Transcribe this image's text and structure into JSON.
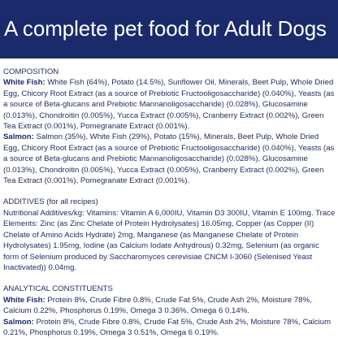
{
  "banner": {
    "title": "A complete pet food for Adult Dogs"
  },
  "composition": {
    "heading": "COMPOSITION",
    "white_fish_label": "White Fish:",
    "white_fish_text": "White Fish (64%), Potato (14.5%), Sunflower Oil, Minerals, Beet Pulp, Whole Dried Egg, Chicory Root Extract (as a source of Prebiotic Fructooligosaccharide) (0.040%), Yeasts (as a source of Beta-glucans and Prebiotic Mannanoligosaccharide) (0.028%), Glucosamine (0.013%), Chondroitin (0.005%), Yucca Extract (0.005%), Cranberry Extract (0.002%), Green Tea Extract (0.001%), Pomegranate Extract (0.001%).",
    "salmon_label": "Salmon:",
    "salmon_text": "Salmon (35%), White Fish (29%), Potato (15%), Minerals, Beet Pulp, Whole Dried Egg, Chicory Root Extract (as a source of Prebiotic Fructooligosaccharide) (0.040%), Yeasts (as a source of Beta-glucans and Prebiotic Mannanoligosaccharide) (0.028%), Glucosamine (0.013%), Chondroitin (0.005%), Yucca Extract (0.005%), Cranberry Extract (0.002%), Green Tea Extract (0.001%), Pomegranate Extract (0.001%)."
  },
  "additives": {
    "heading": "ADDITIVES (for all recipes)",
    "text": "Nutritional Additives/kg: Vitamins: Vitamin A 6,000IU, Vitamin D3 300IU, Vitamin E 100mg. Trace Elements: Zinc (as Zinc Chelate of Protein Hydrolysates) 16.05mg, Copper (as Copper (II) Chelate of Amino Acids Hydrate) 2mg, Manganese (as Manganese Chelate of Protein Hydrolysates) 1.95mg, Iodine (as Calcium Iodate Anhydrous) 0.32mg, Selenium (as organic form of Selenium produced by Saccharomyces cerevisiae CNCM I-3060 (Selenised Yeast Inactivated)) 0.04mg."
  },
  "analytical": {
    "heading": "ANALYTICAL CONSTITUENTS",
    "white_fish_label": "White Fish:",
    "white_fish_text": "Protein 8%, Crude Fibre 0.8%, Crude Fat 5%, Crude Ash 2%, Moisture 78%, Calcium 0.22%, Phosphorus 0.19%, Omega 3 0.36%, Omega 6 0.14%.",
    "salmon_label": "Salmon:",
    "salmon_text": "Protein 8%, Crude Fibre 0.8%, Crude Fat 5%, Crude Ash 2%, Moisture 78%, Calcium 0.21%, Phosphorus 0.19%, Omega 3 0.51%, Omega 6 0.19%."
  }
}
